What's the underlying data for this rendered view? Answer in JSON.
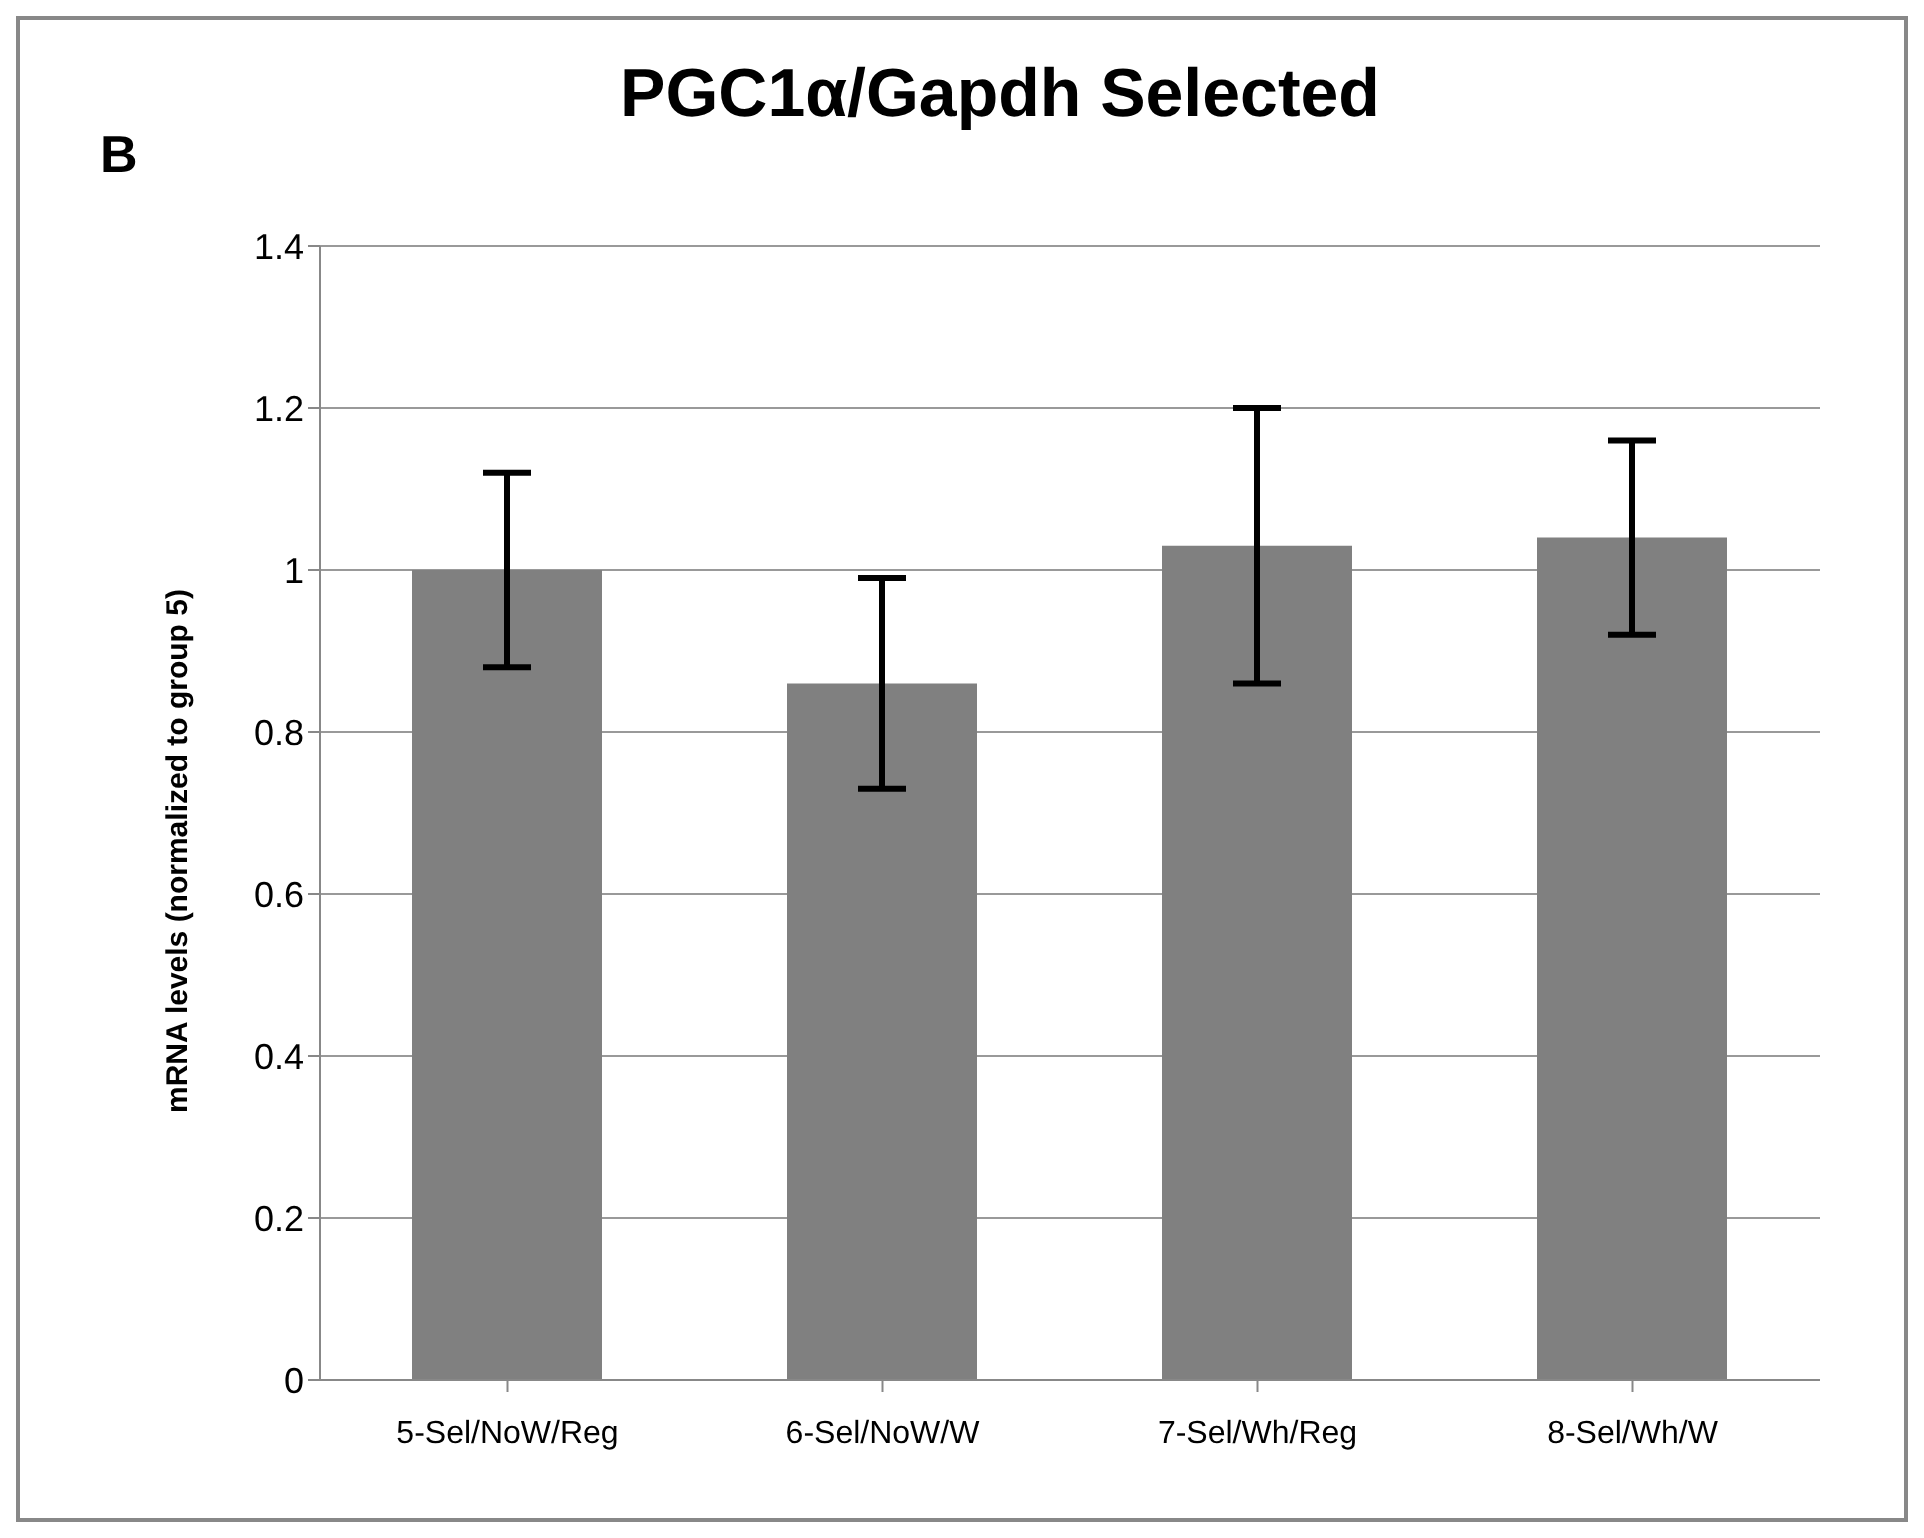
{
  "chart_data": {
    "type": "bar",
    "title": "PGC1α/Gapdh Selected",
    "ylabel": "mRNA levels (normalized to group 5)",
    "annotations": [
      "B"
    ],
    "categories": [
      "5-Sel/NoW/Reg",
      "6-Sel/NoW/W",
      "7-Sel/Wh/Reg",
      "8-Sel/Wh/W"
    ],
    "values": [
      1.0,
      0.86,
      1.03,
      1.04
    ],
    "errors": [
      0.12,
      0.13,
      0.17,
      0.12
    ],
    "color": "#808080",
    "ylim": [
      0,
      1.4
    ],
    "yticks": [
      0,
      0.2,
      0.4,
      0.6,
      0.8,
      1,
      1.2,
      1.4
    ],
    "grid": "y"
  }
}
